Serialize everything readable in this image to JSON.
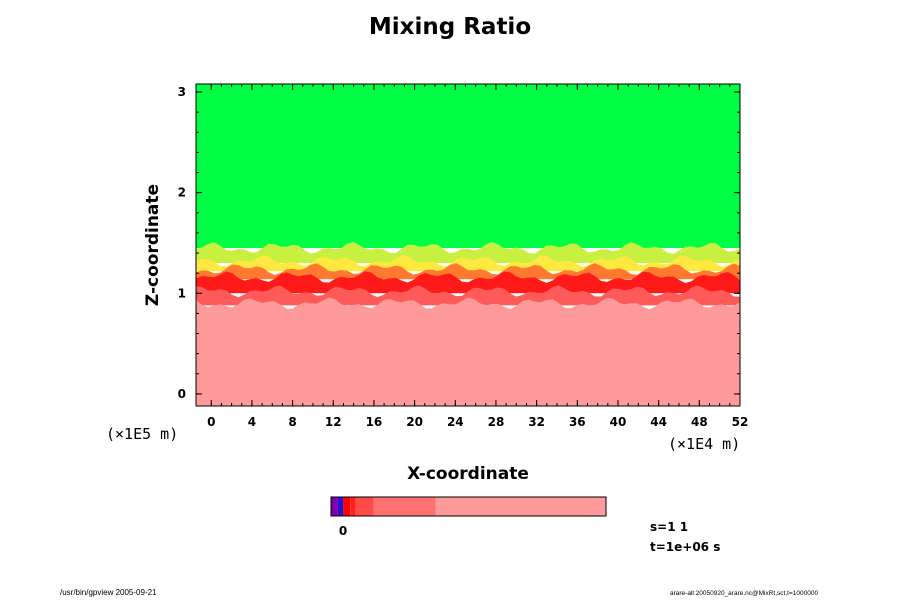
{
  "chart_data": {
    "type": "heatmap",
    "title": "Mixing Ratio",
    "xlabel": "X-coordinate",
    "ylabel": "Z-coordinate",
    "x_scale_note": "(×1E4 m)",
    "y_scale_note": "(×1E5 m)",
    "xlim": [
      -1.5,
      52
    ],
    "ylim": [
      -0.12,
      3.08
    ],
    "x_ticks": [
      0,
      4,
      8,
      12,
      16,
      20,
      24,
      28,
      32,
      36,
      40,
      44,
      48,
      52
    ],
    "y_ticks": [
      0,
      1,
      2,
      3
    ],
    "grid": false,
    "layers_description": "field by height band",
    "layers": [
      {
        "name": "upper",
        "z_range": [
          1.45,
          3.08
        ],
        "color": "#00ff44"
      },
      {
        "name": "transition-yellow-green",
        "z_range": [
          1.3,
          1.45
        ],
        "color": "#c8f040"
      },
      {
        "name": "transition-yellow",
        "z_range": [
          1.22,
          1.32
        ],
        "color": "#ffe840"
      },
      {
        "name": "transition-orange",
        "z_range": [
          1.14,
          1.24
        ],
        "color": "#ff7a30"
      },
      {
        "name": "core-red",
        "z_range": [
          1.0,
          1.16
        ],
        "color": "#ff1a1a"
      },
      {
        "name": "lower-red",
        "z_range": [
          0.88,
          1.02
        ],
        "color": "#ff5a5a"
      },
      {
        "name": "boundary-layer",
        "z_range": [
          -0.12,
          0.9
        ],
        "color": "#ff9a9a"
      }
    ],
    "colorbar": {
      "label": "0",
      "colors": [
        "#7a00b0",
        "#2a10d0",
        "#ff0000",
        "#ff2020",
        "#ff4a4a",
        "#ff7070",
        "#ff9a9a"
      ],
      "fractions": [
        0.025,
        0.02,
        0.025,
        0.02,
        0.065,
        0.225,
        0.62
      ]
    }
  },
  "info": {
    "s": "s=1 1",
    "t": "t=1e+06 s"
  },
  "footer": {
    "left": "/usr/bin/gpview 2005-09-21",
    "right": "arare-all:20050920_arare.nc@MixRt,sct,t=1000000"
  }
}
